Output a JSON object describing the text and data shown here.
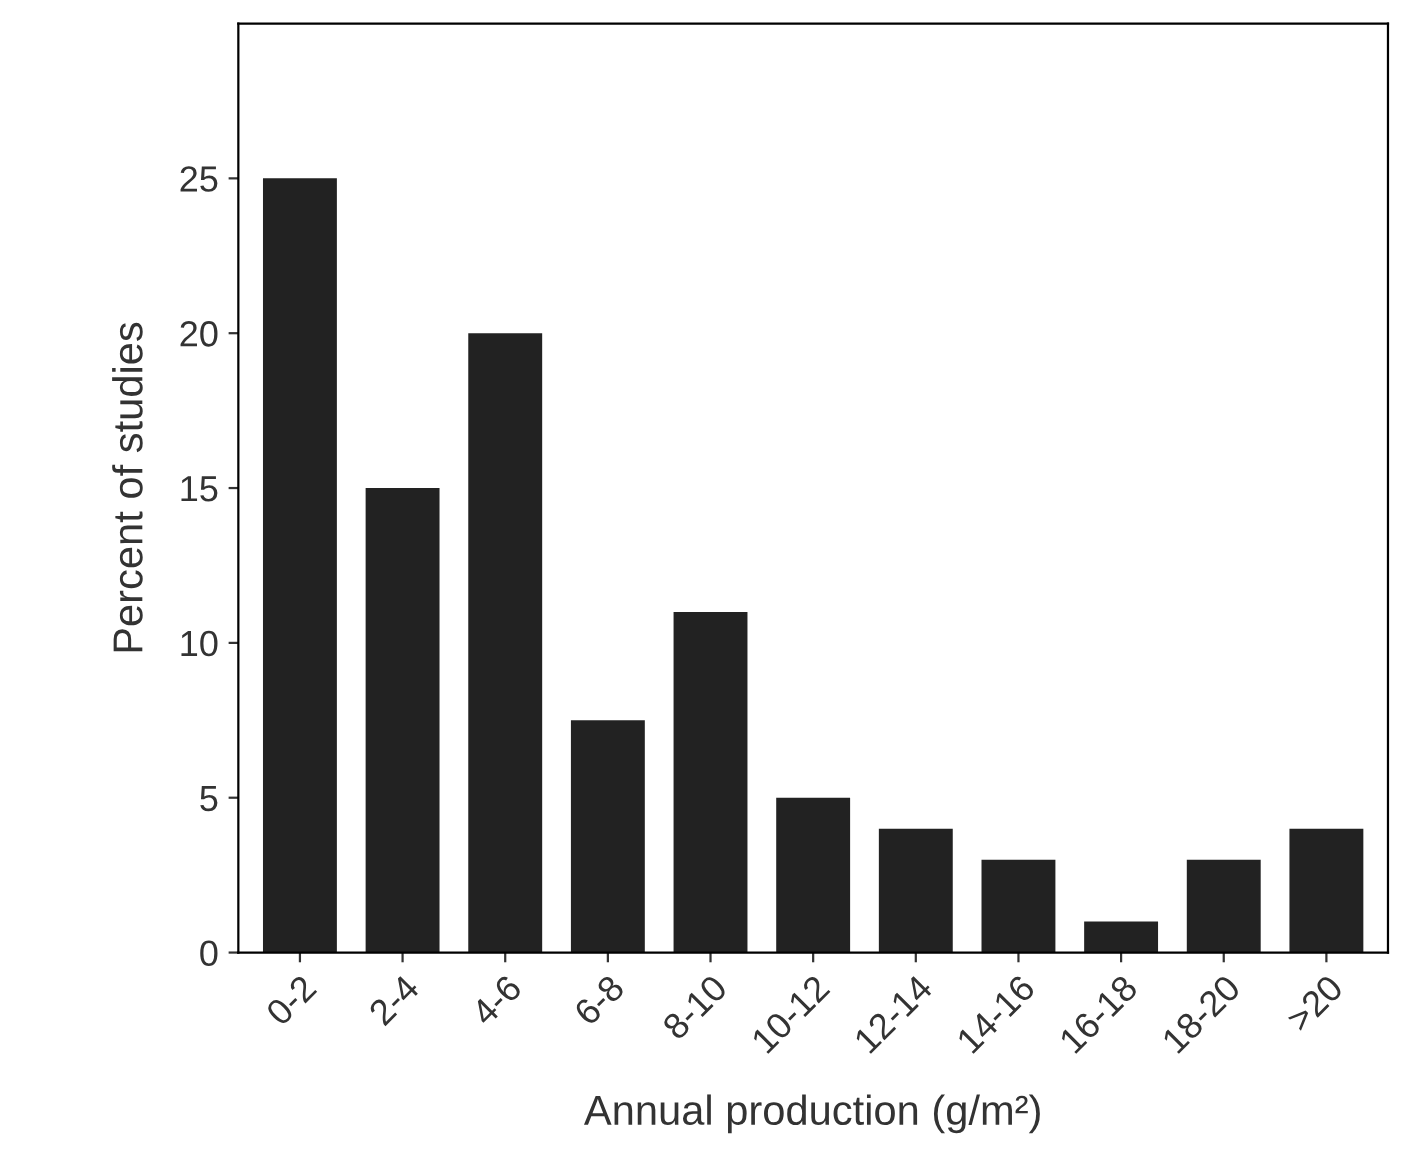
{
  "chart_data": {
    "type": "bar",
    "xlabel": "Annual production (g/m²)",
    "ylabel": "Percent of studies",
    "categories": [
      "0-2",
      "2-4",
      "4-6",
      "6-8",
      "8-10",
      "10-12",
      "12-14",
      "14-16",
      "16-18",
      "18-20",
      ">20"
    ],
    "values": [
      25,
      15,
      20,
      7.5,
      11,
      5,
      4,
      3,
      1,
      3,
      4
    ],
    "color": "#222222",
    "ylim": [
      0,
      30
    ],
    "yticks": [
      0,
      5,
      10,
      15,
      20,
      25
    ],
    "grid": false,
    "legend": false
  }
}
